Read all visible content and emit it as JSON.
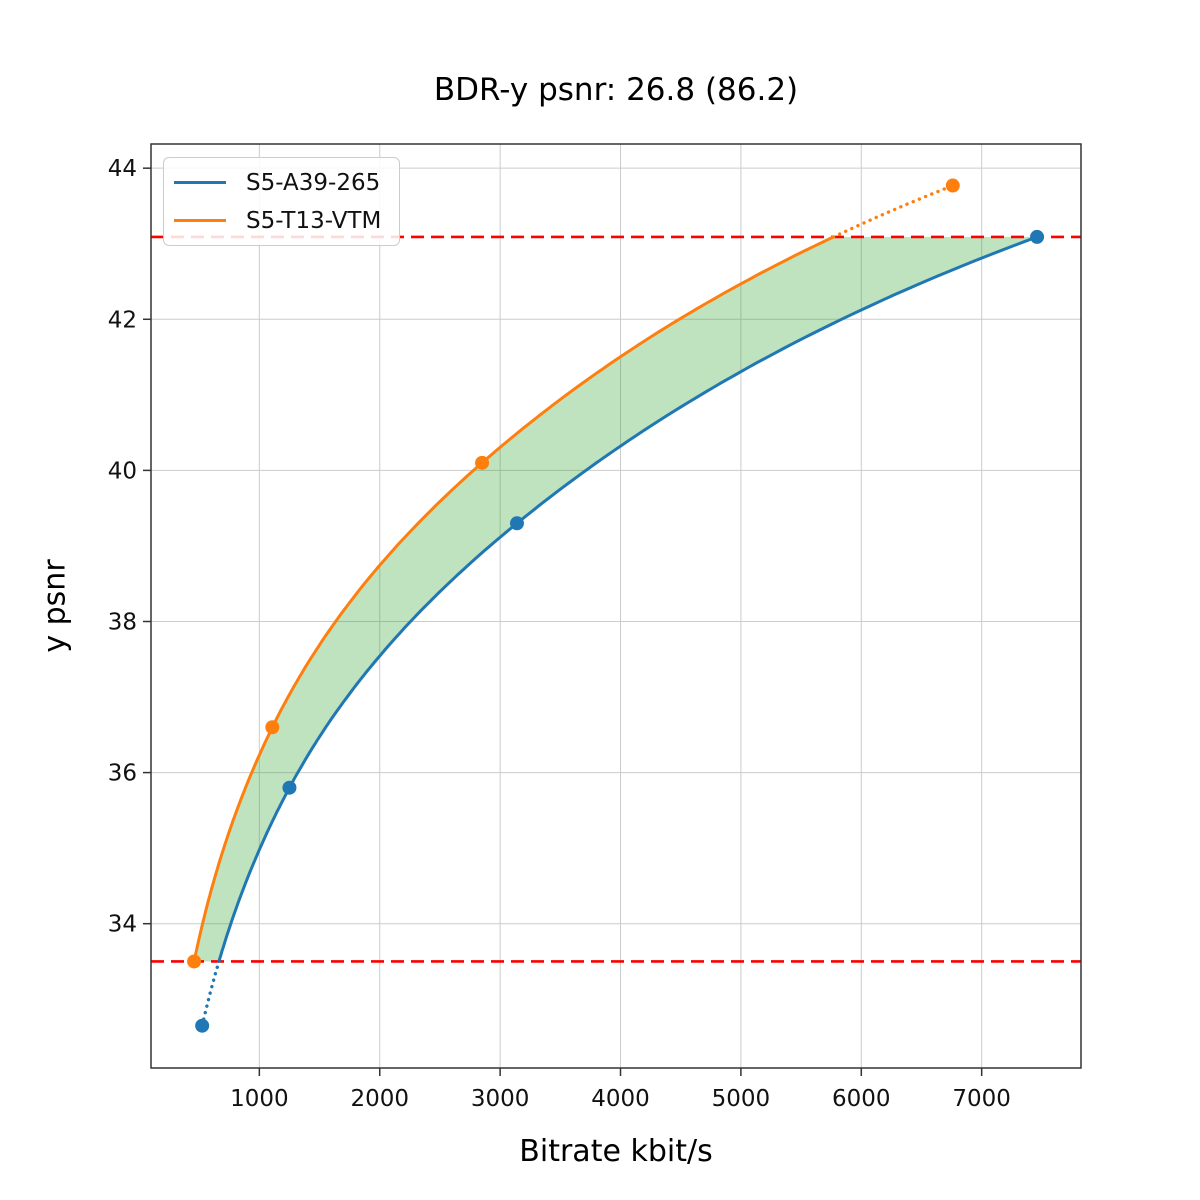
{
  "chart_data": {
    "type": "line",
    "title": "BDR-y psnr: 26.8 (86.2)",
    "xlabel": "Bitrate kbit/s",
    "ylabel": "y psnr",
    "xlim": [
      100,
      7825
    ],
    "ylim": [
      32.09,
      44.32
    ],
    "x_ticks": [
      1000,
      2000,
      3000,
      4000,
      5000,
      6000,
      7000
    ],
    "y_ticks": [
      34,
      36,
      38,
      40,
      42,
      44
    ],
    "grid": true,
    "grid_color": "#cccccc",
    "legend_position": "upper left",
    "interpolation": "pchip-log-x",
    "series": [
      {
        "name": "S5-A39-265",
        "color": "#1f77b4",
        "points": [
          [
            525,
            32.65
          ],
          [
            1250,
            35.8
          ],
          [
            3140,
            39.3
          ],
          [
            7460,
            43.09
          ]
        ]
      },
      {
        "name": "S5-T13-VTM",
        "color": "#ff7f0e",
        "points": [
          [
            458,
            33.5
          ],
          [
            1108,
            36.6
          ],
          [
            2850,
            40.1
          ],
          [
            6760,
            43.77
          ]
        ]
      }
    ],
    "overlap_bounds": {
      "psnr_low": 33.5,
      "psnr_high": 43.09,
      "line_color": "#ff0000",
      "line_style": "dashed"
    },
    "fill_between_color": "rgba(44,160,44,0.3)"
  }
}
